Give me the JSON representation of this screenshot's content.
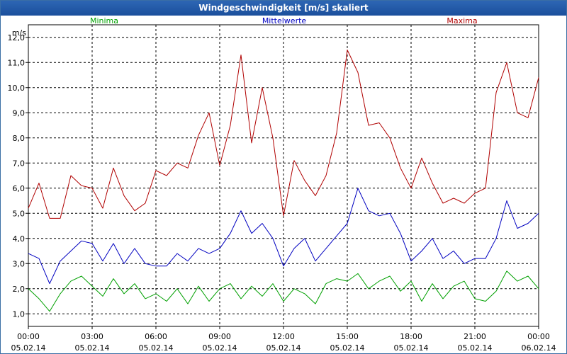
{
  "window": {
    "title": "Windgeschwindigkeit [m/s] skaliert"
  },
  "chart_data": {
    "type": "line",
    "title": "Windgeschwindigkeit [m/s] skaliert",
    "ylabel": "m/s",
    "xlabel": "",
    "ylim": [
      0.5,
      12.5
    ],
    "xlim": [
      0,
      24
    ],
    "grid": true,
    "legend_position": "top",
    "y_ticks": [
      "1,0",
      "2,0",
      "3,0",
      "4,0",
      "5,0",
      "6,0",
      "7,0",
      "8,0",
      "9,0",
      "10,0",
      "11,0",
      "12,0"
    ],
    "x_ticks": [
      {
        "time": "00:00",
        "date": "05.02.14"
      },
      {
        "time": "03:00",
        "date": "05.02.14"
      },
      {
        "time": "06:00",
        "date": "05.02.14"
      },
      {
        "time": "09:00",
        "date": "05.02.14"
      },
      {
        "time": "12:00",
        "date": "05.02.14"
      },
      {
        "time": "15:00",
        "date": "05.02.14"
      },
      {
        "time": "18:00",
        "date": "05.02.14"
      },
      {
        "time": "21:00",
        "date": "05.02.14"
      },
      {
        "time": "00:00",
        "date": "06.02.14"
      }
    ],
    "series": [
      {
        "name": "Minima",
        "color": "#00a000",
        "x": [
          0,
          0.5,
          1,
          1.5,
          2,
          2.5,
          3,
          3.5,
          4,
          4.5,
          5,
          5.5,
          6,
          6.5,
          7,
          7.5,
          8,
          8.5,
          9,
          9.5,
          10,
          10.5,
          11,
          11.5,
          12,
          12.5,
          13,
          13.5,
          14,
          14.5,
          15,
          15.5,
          16,
          16.5,
          17,
          17.5,
          18,
          18.5,
          19,
          19.5,
          20,
          20.5,
          21,
          21.5,
          22,
          22.5,
          23,
          23.5,
          24
        ],
        "values": [
          2.0,
          1.6,
          1.1,
          1.8,
          2.3,
          2.5,
          2.1,
          1.7,
          2.4,
          1.8,
          2.2,
          1.6,
          1.8,
          1.5,
          2.0,
          1.4,
          2.1,
          1.5,
          2.0,
          2.2,
          1.6,
          2.1,
          1.7,
          2.2,
          1.5,
          2.0,
          1.8,
          1.4,
          2.2,
          2.4,
          2.3,
          2.6,
          2.0,
          2.3,
          2.5,
          1.9,
          2.3,
          1.5,
          2.2,
          1.6,
          2.1,
          2.3,
          1.6,
          1.5,
          1.9,
          2.7,
          2.3,
          2.5,
          2.0
        ]
      },
      {
        "name": "Mittelwerte",
        "color": "#0000c0",
        "x": [
          0,
          0.5,
          1,
          1.5,
          2,
          2.5,
          3,
          3.5,
          4,
          4.5,
          5,
          5.5,
          6,
          6.5,
          7,
          7.5,
          8,
          8.5,
          9,
          9.5,
          10,
          10.5,
          11,
          11.5,
          12,
          12.5,
          13,
          13.5,
          14,
          14.5,
          15,
          15.5,
          16,
          16.5,
          17,
          17.5,
          18,
          18.5,
          19,
          19.5,
          20,
          20.5,
          21,
          21.5,
          22,
          22.5,
          23,
          23.5,
          24
        ],
        "values": [
          3.4,
          3.2,
          2.2,
          3.1,
          3.5,
          3.9,
          3.8,
          3.1,
          3.8,
          3.0,
          3.6,
          3.0,
          2.9,
          2.9,
          3.4,
          3.1,
          3.6,
          3.4,
          3.6,
          4.2,
          5.1,
          4.2,
          4.6,
          4.0,
          2.9,
          3.6,
          4.0,
          3.1,
          3.6,
          4.1,
          4.6,
          6.0,
          5.1,
          4.9,
          5.0,
          4.2,
          3.1,
          3.5,
          4.0,
          3.2,
          3.5,
          3.0,
          3.2,
          3.2,
          4.0,
          5.5,
          4.4,
          4.6,
          5.0
        ]
      },
      {
        "name": "Maxima",
        "color": "#b00000",
        "x": [
          0,
          0.5,
          1,
          1.5,
          2,
          2.5,
          3,
          3.5,
          4,
          4.5,
          5,
          5.5,
          6,
          6.5,
          7,
          7.5,
          8,
          8.5,
          9,
          9.5,
          10,
          10.5,
          11,
          11.5,
          12,
          12.5,
          13,
          13.5,
          14,
          14.5,
          15,
          15.5,
          16,
          16.5,
          17,
          17.5,
          18,
          18.5,
          19,
          19.5,
          20,
          20.5,
          21,
          21.5,
          22,
          22.5,
          23,
          23.5,
          24
        ],
        "values": [
          5.2,
          6.2,
          4.8,
          4.8,
          6.5,
          6.1,
          6.0,
          5.2,
          6.8,
          5.7,
          5.1,
          5.4,
          6.7,
          6.5,
          7.0,
          6.8,
          8.1,
          9.0,
          6.9,
          8.5,
          11.3,
          7.8,
          10.0,
          8.0,
          4.9,
          7.1,
          6.3,
          5.7,
          6.5,
          8.2,
          11.5,
          10.6,
          8.5,
          8.6,
          8.0,
          6.8,
          6.0,
          7.2,
          6.2,
          5.4,
          5.6,
          5.4,
          5.8,
          6.0,
          9.8,
          11.0,
          9.0,
          8.8,
          10.4
        ]
      }
    ]
  }
}
